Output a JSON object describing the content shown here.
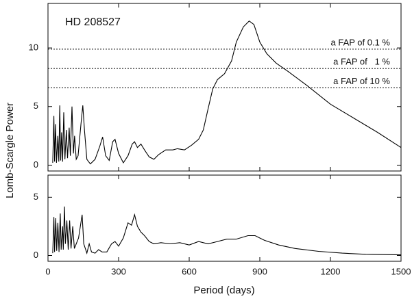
{
  "chart_data": [
    {
      "type": "line",
      "annotation": "HD 208527",
      "ylabel": "Lomb-Scargle Power",
      "xlim": [
        0,
        1500
      ],
      "xticks": [
        0,
        300,
        600,
        900,
        1200,
        1500
      ],
      "ylim": [
        -0.5,
        13.8
      ],
      "yticks": [
        0,
        5,
        10
      ],
      "color": "#000000",
      "hlines": [
        {
          "value": 9.9,
          "label": "a FAP of 0.1 %"
        },
        {
          "value": 8.25,
          "label": "a FAP of   1 %"
        },
        {
          "value": 6.6,
          "label": "a FAP of 10 %"
        }
      ],
      "x": [
        20,
        25,
        28,
        32,
        36,
        42,
        46,
        50,
        54,
        58,
        62,
        67,
        72,
        78,
        83,
        90,
        95,
        102,
        108,
        113,
        120,
        128,
        140,
        148,
        155,
        165,
        180,
        200,
        220,
        232,
        245,
        260,
        275,
        285,
        300,
        320,
        340,
        358,
        368,
        380,
        395,
        410,
        430,
        450,
        470,
        500,
        530,
        550,
        580,
        610,
        640,
        660,
        680,
        700,
        720,
        750,
        780,
        800,
        830,
        855,
        875,
        900,
        930,
        970,
        1020,
        1100,
        1200,
        1300,
        1400,
        1500
      ],
      "values": [
        0.2,
        4.2,
        0.3,
        3.5,
        0.2,
        2.5,
        0.3,
        5.1,
        0.4,
        2.8,
        0.3,
        4.5,
        0.5,
        3.0,
        0.6,
        3.2,
        0.8,
        5.0,
        1.0,
        2.5,
        0.5,
        0.8,
        3.5,
        5.1,
        3.0,
        0.5,
        0.1,
        0.5,
        1.6,
        2.4,
        0.8,
        0.4,
        2.0,
        2.2,
        1.0,
        0.2,
        0.8,
        1.8,
        2.0,
        1.5,
        1.8,
        1.3,
        0.7,
        0.5,
        0.9,
        1.3,
        1.3,
        1.4,
        1.3,
        1.7,
        2.2,
        3.0,
        4.8,
        6.5,
        7.3,
        7.8,
        8.9,
        10.5,
        11.8,
        12.3,
        12.0,
        10.5,
        9.5,
        8.7,
        8.0,
        6.8,
        5.2,
        4.0,
        2.8,
        1.5
      ]
    },
    {
      "type": "line",
      "xlabel": "Period (days)",
      "xlim": [
        0,
        1500
      ],
      "xticks": [
        0,
        300,
        600,
        900,
        1200,
        1500
      ],
      "ylim": [
        -0.5,
        6.9
      ],
      "yticks": [
        0,
        5
      ],
      "color": "#000000",
      "x": [
        20,
        25,
        28,
        33,
        37,
        42,
        47,
        52,
        56,
        62,
        65,
        70,
        74,
        80,
        86,
        92,
        98,
        105,
        112,
        120,
        130,
        145,
        152,
        165,
        175,
        185,
        200,
        215,
        230,
        250,
        270,
        285,
        300,
        320,
        340,
        355,
        368,
        380,
        395,
        410,
        430,
        450,
        480,
        520,
        560,
        600,
        640,
        680,
        720,
        760,
        800,
        850,
        880,
        920,
        980,
        1050,
        1150,
        1250,
        1350,
        1500
      ],
      "values": [
        0.2,
        3.3,
        0.3,
        3.2,
        0.4,
        2.8,
        0.3,
        3.6,
        0.5,
        2.5,
        0.5,
        4.2,
        1.0,
        3.0,
        0.5,
        3.0,
        0.6,
        2.5,
        0.6,
        1.0,
        1.5,
        3.5,
        1.0,
        0.2,
        1.0,
        0.3,
        0.2,
        0.5,
        0.3,
        0.3,
        1.0,
        1.2,
        0.8,
        1.5,
        2.8,
        2.6,
        3.5,
        2.5,
        2.0,
        1.7,
        1.2,
        1.0,
        1.1,
        1.0,
        1.1,
        0.9,
        1.2,
        1.0,
        1.2,
        1.4,
        1.4,
        1.7,
        1.7,
        1.3,
        0.9,
        0.6,
        0.35,
        0.2,
        0.1,
        0.05
      ]
    }
  ]
}
